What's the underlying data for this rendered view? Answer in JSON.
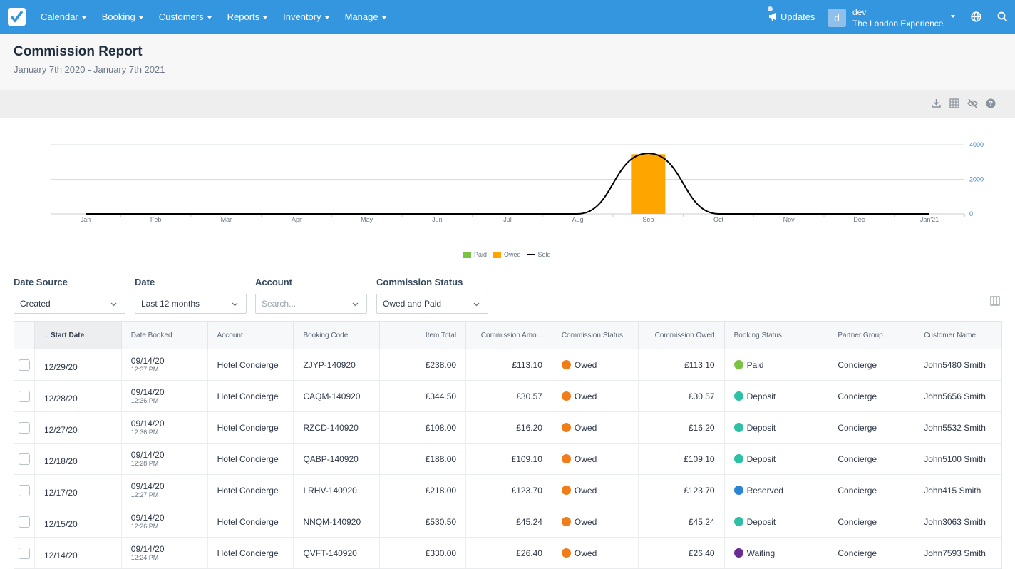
{
  "nav": {
    "items": [
      "Calendar",
      "Booking",
      "Customers",
      "Reports",
      "Inventory",
      "Manage"
    ],
    "updates_label": "Updates",
    "avatar_letter": "d",
    "user_name": "dev",
    "org_name": "The London Experience"
  },
  "header": {
    "title": "Commission Report",
    "date_range": "January 7th 2020 - January 7th 2021"
  },
  "toolbar_icons": [
    "download-icon",
    "grid-icon",
    "eye-off-icon",
    "help-icon"
  ],
  "chart_data": {
    "type": "bar",
    "categories": [
      "Jan",
      "Feb",
      "Mar",
      "Apr",
      "May",
      "Jun",
      "Jul",
      "Aug",
      "Sep",
      "Oct",
      "Nov",
      "Dec",
      "Jan'21"
    ],
    "series": [
      {
        "name": "Paid",
        "type": "bar",
        "color": "#7cc243",
        "values": [
          0,
          0,
          0,
          0,
          0,
          0,
          0,
          0,
          0,
          0,
          0,
          0,
          0
        ]
      },
      {
        "name": "Owed",
        "type": "bar",
        "color": "#ffa500",
        "values": [
          0,
          0,
          0,
          0,
          0,
          0,
          0,
          0,
          3450,
          0,
          0,
          0,
          0
        ]
      },
      {
        "name": "Sold",
        "type": "line",
        "color": "#000000",
        "values": [
          0,
          0,
          0,
          0,
          0,
          0,
          0,
          0,
          3500,
          0,
          0,
          0,
          0
        ]
      }
    ],
    "y_ticks": [
      "0",
      "2000",
      "4000"
    ],
    "ylim": [
      0,
      4000
    ],
    "y_axis_side": "right",
    "grid": true,
    "legend_position": "bottom"
  },
  "filters": {
    "date_source": {
      "label": "Date Source",
      "value": "Created"
    },
    "date": {
      "label": "Date",
      "value": "Last 12 months"
    },
    "account": {
      "label": "Account",
      "placeholder": "Search..."
    },
    "commission_status": {
      "label": "Commission Status",
      "value": "Owed and Paid"
    }
  },
  "table": {
    "columns": [
      "Start Date",
      "Date Booked",
      "Account",
      "Booking Code",
      "Item Total",
      "Commission Amo...",
      "Commission Status",
      "Commission Owed",
      "Booking Status",
      "Partner Group",
      "Customer Name"
    ],
    "sort_indicator": "↓",
    "status_colors": {
      "Owed": "#f07d1a",
      "Paid": "#7cc243",
      "Deposit": "#2ebfa5",
      "Reserved": "#2b84d3",
      "Waiting": "#6b2c91"
    },
    "rows": [
      {
        "start": "12/29/20",
        "booked_date": "09/14/20",
        "booked_time": "12:37 PM",
        "account": "Hotel Concierge",
        "code": "ZJYP-140920",
        "item_total": "£238.00",
        "commission": "£113.10",
        "comm_status": "Owed",
        "owed": "£113.10",
        "booking_status": "Paid",
        "partner": "Concierge",
        "customer": "John5480 Smith"
      },
      {
        "start": "12/28/20",
        "booked_date": "09/14/20",
        "booked_time": "12:36 PM",
        "account": "Hotel Concierge",
        "code": "CAQM-140920",
        "item_total": "£344.50",
        "commission": "£30.57",
        "comm_status": "Owed",
        "owed": "£30.57",
        "booking_status": "Deposit",
        "partner": "Concierge",
        "customer": "John5656 Smith"
      },
      {
        "start": "12/27/20",
        "booked_date": "09/14/20",
        "booked_time": "12:36 PM",
        "account": "Hotel Concierge",
        "code": "RZCD-140920",
        "item_total": "£108.00",
        "commission": "£16.20",
        "comm_status": "Owed",
        "owed": "£16.20",
        "booking_status": "Deposit",
        "partner": "Concierge",
        "customer": "John5532 Smith"
      },
      {
        "start": "12/18/20",
        "booked_date": "09/14/20",
        "booked_time": "12:28 PM",
        "account": "Hotel Concierge",
        "code": "QABP-140920",
        "item_total": "£188.00",
        "commission": "£109.10",
        "comm_status": "Owed",
        "owed": "£109.10",
        "booking_status": "Deposit",
        "partner": "Concierge",
        "customer": "John5100 Smith"
      },
      {
        "start": "12/17/20",
        "booked_date": "09/14/20",
        "booked_time": "12:27 PM",
        "account": "Hotel Concierge",
        "code": "LRHV-140920",
        "item_total": "£218.00",
        "commission": "£123.70",
        "comm_status": "Owed",
        "owed": "£123.70",
        "booking_status": "Reserved",
        "partner": "Concierge",
        "customer": "John415 Smith"
      },
      {
        "start": "12/15/20",
        "booked_date": "09/14/20",
        "booked_time": "12:26 PM",
        "account": "Hotel Concierge",
        "code": "NNQM-140920",
        "item_total": "£530.50",
        "commission": "£45.24",
        "comm_status": "Owed",
        "owed": "£45.24",
        "booking_status": "Deposit",
        "partner": "Concierge",
        "customer": "John3063 Smith"
      },
      {
        "start": "12/14/20",
        "booked_date": "09/14/20",
        "booked_time": "12:24 PM",
        "account": "Hotel Concierge",
        "code": "QVFT-140920",
        "item_total": "£330.00",
        "commission": "£26.40",
        "comm_status": "Owed",
        "owed": "£26.40",
        "booking_status": "Waiting",
        "partner": "Concierge",
        "customer": "John7593 Smith"
      }
    ]
  }
}
